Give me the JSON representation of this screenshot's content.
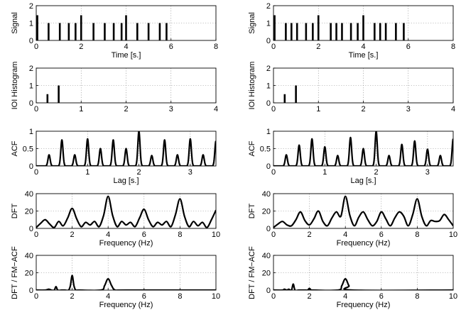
{
  "chart_data": [
    {
      "type": "stem",
      "column": 0,
      "row": 0,
      "title": "",
      "xlabel": "Time [s.]",
      "ylabel": "Signal",
      "xlim": [
        0,
        8
      ],
      "ylim": [
        0,
        2
      ],
      "xticks": [
        0,
        2,
        4,
        6,
        8
      ],
      "yticks": [
        0,
        1,
        2
      ],
      "x": [
        0.05,
        0.55,
        1.05,
        1.45,
        1.75,
        2.0,
        2.55,
        3.05,
        3.45,
        3.8,
        4.0,
        4.5,
        5.0,
        5.5,
        5.8
      ],
      "y": [
        1.45,
        1.0,
        1.0,
        1.0,
        1.0,
        1.45,
        1.0,
        1.0,
        1.0,
        1.0,
        1.45,
        1.0,
        1.0,
        1.0,
        1.0
      ]
    },
    {
      "type": "stem",
      "column": 0,
      "row": 1,
      "title": "",
      "xlabel": "",
      "ylabel": "IOI Histogram",
      "xlim": [
        0,
        4
      ],
      "ylim": [
        0,
        2
      ],
      "xticks": [
        0,
        1,
        2,
        3,
        4
      ],
      "yticks": [
        0,
        1,
        2
      ],
      "x": [
        0.25,
        0.5
      ],
      "y": [
        0.5,
        1.0
      ]
    },
    {
      "type": "line",
      "column": 0,
      "row": 2,
      "title": "",
      "xlabel": "Lag [s.]",
      "ylabel": "ACF",
      "xlim": [
        0,
        3.5
      ],
      "ylim": [
        0,
        1
      ],
      "xticks": [
        0,
        1,
        2,
        3
      ],
      "yticks": [
        0,
        0.5,
        1
      ],
      "ytick_labels": [
        "0",
        "0.5",
        "1"
      ],
      "peaks_x": [
        0.25,
        0.5,
        0.75,
        1.0,
        1.25,
        1.5,
        1.75,
        2.0,
        2.25,
        2.5,
        2.75,
        3.0,
        3.25,
        3.5
      ],
      "peaks_y": [
        0.32,
        0.75,
        0.32,
        0.78,
        0.5,
        0.75,
        0.5,
        1.0,
        0.3,
        0.75,
        0.32,
        0.78,
        0.32,
        0.72
      ],
      "peak_width": 0.03
    },
    {
      "type": "line",
      "column": 0,
      "row": 3,
      "title": "",
      "xlabel": "Frequency (Hz)",
      "ylabel": "DFT",
      "xlim": [
        0,
        10
      ],
      "ylim": [
        0,
        40
      ],
      "xticks": [
        0,
        2,
        4,
        6,
        8,
        10
      ],
      "yticks": [
        0,
        20,
        40
      ],
      "x": [
        0,
        0.25,
        0.5,
        0.75,
        1.0,
        1.25,
        1.5,
        1.75,
        2.0,
        2.25,
        2.5,
        2.75,
        3.0,
        3.25,
        3.5,
        3.75,
        4.0,
        4.25,
        4.5,
        4.75,
        5.0,
        5.25,
        5.5,
        5.75,
        6.0,
        6.25,
        6.5,
        6.75,
        7.0,
        7.25,
        7.5,
        7.75,
        8.0,
        8.25,
        8.5,
        8.75,
        9.0,
        9.25,
        9.5,
        9.75,
        10.0
      ],
      "y": [
        1,
        6,
        10,
        5,
        1,
        8,
        3,
        12,
        23,
        11,
        2,
        7,
        4,
        8,
        2,
        15,
        37,
        15,
        2,
        8,
        4,
        7,
        2,
        12,
        22,
        10,
        2,
        7,
        4,
        8,
        2,
        16,
        34,
        14,
        2,
        8,
        3,
        7,
        1,
        10,
        21
      ]
    },
    {
      "type": "line",
      "column": 0,
      "row": 4,
      "title": "",
      "xlabel": "Frequency (Hz)",
      "ylabel": "DFT / FM−ACF",
      "xlim": [
        0,
        10
      ],
      "ylim": [
        0,
        40
      ],
      "xticks": [
        0,
        2,
        4,
        6,
        8,
        10
      ],
      "yticks": [
        0,
        20,
        40
      ],
      "x": [
        0,
        0.5,
        0.7,
        0.85,
        1.0,
        1.1,
        1.2,
        1.4,
        1.5,
        1.6,
        1.8,
        1.9,
        2.0,
        2.1,
        2.2,
        2.4,
        3.6,
        3.8,
        4.0,
        4.2,
        4.4,
        5.0,
        10.0
      ],
      "y": [
        0,
        0,
        1,
        0,
        0,
        4,
        0,
        0,
        0,
        0,
        0,
        5,
        17,
        5,
        0,
        0,
        0,
        5,
        13,
        5,
        0,
        0,
        0
      ]
    },
    {
      "type": "stem",
      "column": 1,
      "row": 0,
      "title": "",
      "xlabel": "Time [s.]",
      "ylabel": "Signal",
      "xlim": [
        0,
        8
      ],
      "ylim": [
        0,
        2
      ],
      "xticks": [
        0,
        2,
        4,
        6,
        8
      ],
      "yticks": [
        0,
        1,
        2
      ],
      "x": [
        0.05,
        0.55,
        0.8,
        1.05,
        1.45,
        1.75,
        2.0,
        2.55,
        2.8,
        3.05,
        3.45,
        3.75,
        4.0,
        4.5,
        4.75,
        5.0,
        5.45,
        5.8
      ],
      "y": [
        1.45,
        1.0,
        1.0,
        1.0,
        1.0,
        1.0,
        1.45,
        1.0,
        1.0,
        1.0,
        1.0,
        1.0,
        1.45,
        1.0,
        1.0,
        1.0,
        1.0,
        1.0
      ]
    },
    {
      "type": "stem",
      "column": 1,
      "row": 1,
      "title": "",
      "xlabel": "",
      "ylabel": "IOI Histogram",
      "xlim": [
        0,
        4
      ],
      "ylim": [
        0,
        2
      ],
      "xticks": [
        0,
        1,
        2,
        3,
        4
      ],
      "yticks": [
        0,
        1,
        2
      ],
      "x": [
        0.25,
        0.5
      ],
      "y": [
        0.5,
        1.0
      ]
    },
    {
      "type": "line",
      "column": 1,
      "row": 2,
      "title": "",
      "xlabel": "Lag [s.]",
      "ylabel": "ACF",
      "xlim": [
        0,
        3.5
      ],
      "ylim": [
        0,
        1
      ],
      "xticks": [
        0,
        1,
        2,
        3
      ],
      "yticks": [
        0,
        0.5,
        1
      ],
      "ytick_labels": [
        "0",
        "0.5",
        "1"
      ],
      "peaks_x": [
        0.25,
        0.5,
        0.75,
        1.0,
        1.25,
        1.5,
        1.75,
        2.0,
        2.25,
        2.5,
        2.75,
        3.0,
        3.25,
        3.5
      ],
      "peaks_y": [
        0.32,
        0.6,
        0.78,
        0.55,
        0.3,
        0.82,
        0.5,
        1.0,
        0.3,
        0.62,
        0.72,
        0.48,
        0.3,
        0.78
      ],
      "peak_width": 0.03
    },
    {
      "type": "line",
      "column": 1,
      "row": 3,
      "title": "",
      "xlabel": "Frequency (Hz)",
      "ylabel": "DFT",
      "xlim": [
        0,
        10
      ],
      "ylim": [
        0,
        40
      ],
      "xticks": [
        0,
        2,
        4,
        6,
        8,
        10
      ],
      "yticks": [
        0,
        20,
        40
      ],
      "x": [
        0,
        0.25,
        0.5,
        0.75,
        1.0,
        1.25,
        1.5,
        1.75,
        2.0,
        2.25,
        2.5,
        2.75,
        3.0,
        3.25,
        3.5,
        3.75,
        4.0,
        4.25,
        4.5,
        4.75,
        5.0,
        5.25,
        5.5,
        5.75,
        6.0,
        6.25,
        6.5,
        6.75,
        7.0,
        7.25,
        7.5,
        7.75,
        8.0,
        8.25,
        8.5,
        8.75,
        9.0,
        9.25,
        9.5,
        9.75,
        10.0
      ],
      "y": [
        1,
        5,
        8,
        4,
        3,
        10,
        19,
        9,
        4,
        11,
        20,
        8,
        3,
        12,
        19,
        14,
        37,
        15,
        3,
        13,
        19,
        10,
        3,
        8,
        19,
        11,
        3,
        12,
        19,
        14,
        3,
        16,
        34,
        14,
        3,
        9,
        8,
        9,
        16,
        10,
        3
      ]
    },
    {
      "type": "line",
      "column": 1,
      "row": 4,
      "title": "",
      "xlabel": "Frequency (Hz)",
      "ylabel": "DFT / FM−ACF",
      "xlim": [
        0,
        10
      ],
      "ylim": [
        0,
        40
      ],
      "xticks": [
        0,
        2,
        4,
        6,
        8,
        10
      ],
      "yticks": [
        0,
        20,
        40
      ],
      "x": [
        0,
        0.5,
        0.6,
        0.75,
        0.85,
        1.0,
        1.1,
        1.2,
        1.4,
        1.6,
        1.8,
        1.9,
        2.0,
        2.1,
        2.2,
        3.6,
        3.8,
        4.0,
        4.2,
        4.4,
        10.0
      ],
      "y": [
        0,
        0,
        1,
        0,
        1,
        0,
        7,
        0,
        0,
        0,
        0,
        0,
        2,
        0,
        0,
        0,
        5,
        13,
        5,
        0,
        0
      ]
    }
  ]
}
